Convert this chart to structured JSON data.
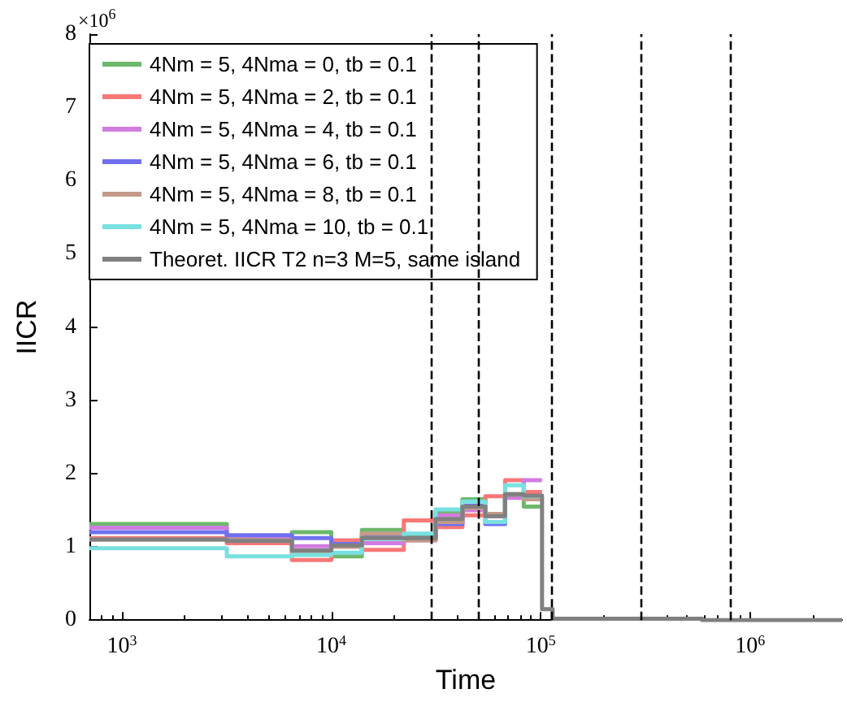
{
  "chart_data": {
    "type": "step",
    "xlabel": "Time",
    "ylabel": "IICR",
    "annotations": [
      "×10$^{6}$"
    ],
    "x": [
      700,
      3170,
      6490,
      10000,
      14000,
      22200,
      31500,
      42300,
      54400,
      67600,
      83000,
      101500,
      114000,
      590000,
      2750000
    ],
    "series": [
      {
        "name": "4Nm = 5, 4Nma = 0, tb = 0.1",
        "color": "#6cb86c",
        "x": [
          700,
          3170,
          6490,
          10000,
          14000,
          22200,
          31500,
          42300,
          54400,
          67600,
          83000,
          101500
        ],
        "values": [
          1.31,
          1.1,
          1.2,
          0.87,
          1.23,
          1.14,
          1.47,
          1.65,
          1.45,
          1.72,
          1.55,
          1.55
        ]
      },
      {
        "name": "4Nm = 5, 4Nma = 2, tb = 0.1",
        "color": "#f87878",
        "x": [
          700,
          3170,
          6490,
          10000,
          14000,
          22200,
          31500,
          42300,
          54400,
          67600,
          83000,
          101500
        ],
        "values": [
          1.12,
          1.05,
          0.82,
          1.09,
          0.96,
          1.36,
          1.27,
          1.43,
          1.69,
          1.91,
          1.75,
          1.75
        ]
      },
      {
        "name": "4Nm = 5, 4Nma = 4, tb = 0.1",
        "color": "#d27ce0",
        "x": [
          700,
          3170,
          6490,
          10000,
          14000,
          22200,
          31500,
          42300,
          54400,
          67600,
          83000,
          101500
        ],
        "values": [
          1.26,
          1.11,
          1.01,
          1.01,
          1.05,
          1.09,
          1.43,
          1.5,
          1.42,
          1.67,
          1.91,
          1.91
        ]
      },
      {
        "name": "4Nm = 5, 4Nma = 6, tb = 0.1",
        "color": "#7070f0",
        "x": [
          700,
          3170,
          6490,
          10000,
          14000,
          22200,
          31500,
          42300,
          54400,
          67600,
          83000,
          101500
        ],
        "values": [
          1.2,
          1.16,
          1.12,
          1.04,
          1.14,
          1.12,
          1.31,
          1.56,
          1.31,
          1.71,
          1.69,
          1.69
        ]
      },
      {
        "name": "4Nm = 5, 4Nma = 8, tb = 0.1",
        "color": "#c49a88",
        "x": [
          700,
          3170,
          6490,
          10000,
          14000,
          22200,
          31500,
          42300,
          54400,
          67600,
          83000,
          101500
        ],
        "values": [
          1.1,
          1.09,
          0.94,
          1.0,
          1.18,
          1.09,
          1.34,
          1.53,
          1.45,
          1.71,
          1.65,
          1.65
        ]
      },
      {
        "name": "4Nm = 5, 4Nma = 10, tb = 0.1",
        "color": "#78e0e0",
        "x": [
          700,
          3170,
          6490,
          10000,
          14000,
          22200,
          31500,
          42300,
          54400,
          67600,
          83000,
          101500
        ],
        "values": [
          0.98,
          0.87,
          0.89,
          0.92,
          1.11,
          1.18,
          1.51,
          1.62,
          1.34,
          1.84,
          1.69,
          1.69
        ]
      },
      {
        "name": "Theoret. IICR T2 n=3 M=5, same island",
        "color": "#808080",
        "values": [
          1.1,
          1.08,
          0.95,
          1.02,
          1.12,
          1.12,
          1.38,
          1.55,
          1.42,
          1.72,
          1.7,
          0.15,
          0.02,
          0,
          0
        ]
      }
    ],
    "xlim": [
      700,
      2750000
    ],
    "ylim": [
      0,
      8
    ],
    "xticks": [
      {
        "value": 1000,
        "label": "10$^{3}$"
      },
      {
        "value": 10000,
        "label": "10$^{4}$"
      },
      {
        "value": 100000,
        "label": "10$^{5}$"
      },
      {
        "value": 1000000,
        "label": "10$^{6}$"
      }
    ],
    "yticks": [
      0,
      1,
      2,
      3,
      4,
      5,
      6,
      7,
      8
    ],
    "ref_lines": [
      {
        "axis": "x",
        "value": 30000,
        "color": "#000000",
        "line_style": "dashed"
      },
      {
        "axis": "x",
        "value": 50000,
        "color": "#000000",
        "line_style": "dashed"
      },
      {
        "axis": "x",
        "value": 112000,
        "color": "#000000",
        "line_style": "dashed"
      },
      {
        "axis": "x",
        "value": 300000,
        "color": "#000000",
        "line_style": "dashed"
      },
      {
        "axis": "x",
        "value": 800000,
        "color": "#000000",
        "line_style": "dashed"
      }
    ],
    "log": "x",
    "grid": false,
    "legend": "top left",
    "marker": "none",
    "line_style": "solid"
  }
}
